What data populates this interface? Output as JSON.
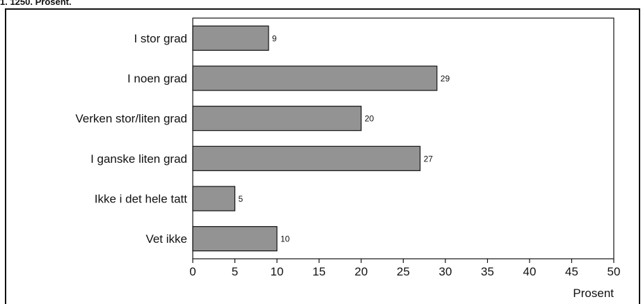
{
  "header": {
    "text": "1. 1250. Prosent."
  },
  "colors": {
    "bar_fill": "#939393",
    "bar_stroke": "#111111",
    "frame": "#111111"
  },
  "chart_data": {
    "type": "bar",
    "orientation": "horizontal",
    "categories": [
      "I stor grad",
      "I noen grad",
      "Verken stor/liten grad",
      "I ganske liten grad",
      "Ikke i det hele tatt",
      "Vet ikke"
    ],
    "values": [
      9,
      29,
      20,
      27,
      5,
      10
    ],
    "data_labels": [
      "9",
      "29",
      "20",
      "27",
      "5",
      "10"
    ],
    "xlim": [
      0,
      50
    ],
    "xticks": [
      0,
      5,
      10,
      15,
      20,
      25,
      30,
      35,
      40,
      45,
      50
    ],
    "xlabel": "Prosent",
    "grid": false,
    "legend": "none"
  }
}
